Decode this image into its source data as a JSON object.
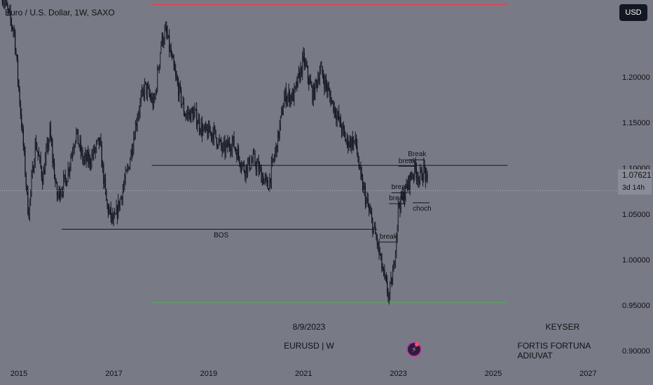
{
  "header": {
    "symbol_title": "Euro / U.S. Dollar, 1W, SAXO"
  },
  "currency_button": "USD",
  "last_price": {
    "price": "1.07621",
    "countdown": "3d 14h",
    "value": 1.07621
  },
  "watermark": {
    "date": "8/9/2023",
    "symbol": "EURUSD | W",
    "author": "KEYSER",
    "motto": "FORTIS FORTUNA ADIUVAT"
  },
  "chart_data": {
    "type": "candlestick",
    "symbol": "EURUSD",
    "interval": "1W",
    "x_range": [
      2014.6,
      2027.6
    ],
    "ylim": [
      0.885,
      1.285
    ],
    "y_ticks": [
      {
        "label": "1.20000",
        "value": 1.2
      },
      {
        "label": "1.15000",
        "value": 1.15
      },
      {
        "label": "1.10000",
        "value": 1.1
      },
      {
        "label": "1.05000",
        "value": 1.05
      },
      {
        "label": "1.00000",
        "value": 1.0
      },
      {
        "label": "0.95000",
        "value": 0.95
      },
      {
        "label": "0.90000",
        "value": 0.9
      }
    ],
    "x_ticks": [
      {
        "label": "2015",
        "value": 2015
      },
      {
        "label": "2017",
        "value": 2017
      },
      {
        "label": "2019",
        "value": 2019
      },
      {
        "label": "2021",
        "value": 2021
      },
      {
        "label": "2023",
        "value": 2023
      },
      {
        "label": "2025",
        "value": 2025
      },
      {
        "label": "2027",
        "value": 2027
      }
    ],
    "price_path": [
      [
        2014.65,
        1.29
      ],
      [
        2014.9,
        1.25
      ],
      [
        2015.1,
        1.12
      ],
      [
        2015.2,
        1.05
      ],
      [
        2015.35,
        1.13
      ],
      [
        2015.5,
        1.09
      ],
      [
        2015.65,
        1.14
      ],
      [
        2015.8,
        1.07
      ],
      [
        2016.0,
        1.09
      ],
      [
        2016.2,
        1.14
      ],
      [
        2016.35,
        1.11
      ],
      [
        2016.5,
        1.11
      ],
      [
        2016.7,
        1.13
      ],
      [
        2016.85,
        1.06
      ],
      [
        2017.0,
        1.04
      ],
      [
        2017.15,
        1.07
      ],
      [
        2017.3,
        1.1
      ],
      [
        2017.5,
        1.16
      ],
      [
        2017.65,
        1.19
      ],
      [
        2017.85,
        1.17
      ],
      [
        2018.0,
        1.24
      ],
      [
        2018.1,
        1.25
      ],
      [
        2018.3,
        1.2
      ],
      [
        2018.5,
        1.16
      ],
      [
        2018.7,
        1.16
      ],
      [
        2018.9,
        1.14
      ],
      [
        2019.1,
        1.14
      ],
      [
        2019.3,
        1.12
      ],
      [
        2019.5,
        1.13
      ],
      [
        2019.75,
        1.1
      ],
      [
        2019.95,
        1.11
      ],
      [
        2020.15,
        1.09
      ],
      [
        2020.25,
        1.08
      ],
      [
        2020.45,
        1.13
      ],
      [
        2020.6,
        1.18
      ],
      [
        2020.8,
        1.18
      ],
      [
        2021.0,
        1.22
      ],
      [
        2021.2,
        1.18
      ],
      [
        2021.35,
        1.21
      ],
      [
        2021.55,
        1.18
      ],
      [
        2021.7,
        1.16
      ],
      [
        2021.9,
        1.13
      ],
      [
        2022.1,
        1.13
      ],
      [
        2022.2,
        1.09
      ],
      [
        2022.4,
        1.05
      ],
      [
        2022.55,
        1.02
      ],
      [
        2022.7,
        0.98
      ],
      [
        2022.8,
        0.96
      ],
      [
        2022.9,
        0.99
      ],
      [
        2023.0,
        1.06
      ],
      [
        2023.1,
        1.07
      ],
      [
        2023.25,
        1.09
      ],
      [
        2023.35,
        1.1
      ],
      [
        2023.45,
        1.09
      ],
      [
        2023.55,
        1.1
      ],
      [
        2023.62,
        1.077
      ]
    ],
    "levels": [
      {
        "price": 1.28,
        "x_start": 2017.8,
        "x_end": 2025.3,
        "color": "#f23645"
      },
      {
        "price": 1.104,
        "x_start": 2017.8,
        "x_end": 2025.3,
        "color": "#131722"
      },
      {
        "price": 1.034,
        "x_start": 2015.9,
        "x_end": 2022.55,
        "color": "#131722",
        "label": "BOS"
      },
      {
        "price": 0.954,
        "x_start": 2017.8,
        "x_end": 2025.3,
        "color": "#4caf50"
      }
    ],
    "annotations": [
      {
        "text": "break",
        "x": 2022.75,
        "price": 1.02
      },
      {
        "text": "break",
        "x": 2022.95,
        "price": 1.062
      },
      {
        "text": "break",
        "x": 2023.0,
        "price": 1.074
      },
      {
        "text": "break",
        "x": 2023.15,
        "price": 1.103
      },
      {
        "text": "Break",
        "x": 2023.35,
        "price": 1.11
      },
      {
        "text": "choch",
        "x": 2023.45,
        "price": 1.063
      }
    ]
  }
}
